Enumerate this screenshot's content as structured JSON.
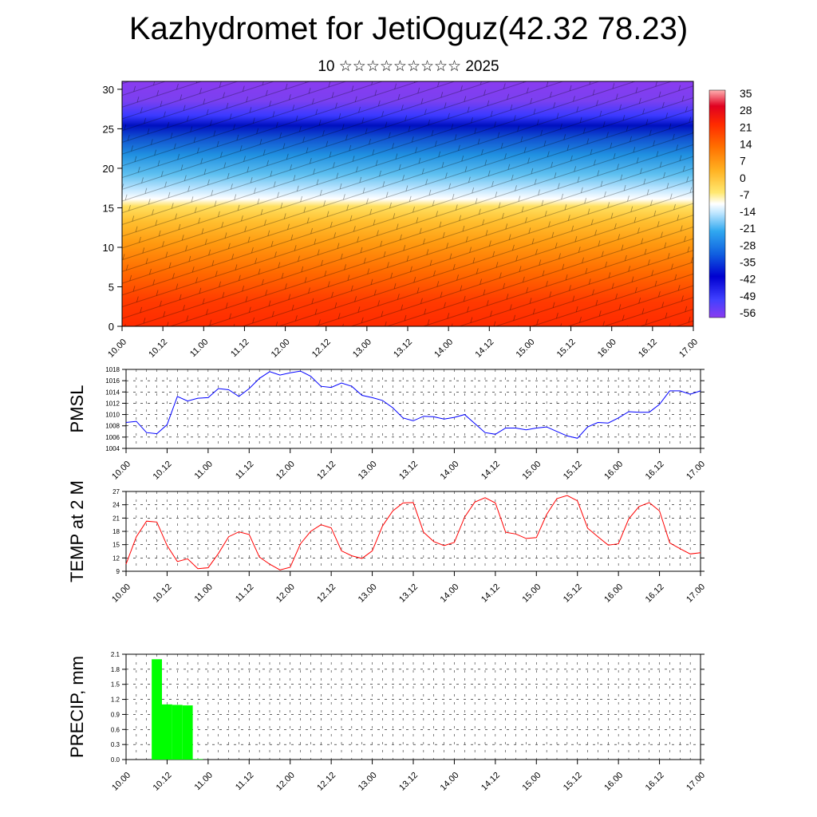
{
  "title": "Kazhydromet for JetiOguz(42.32 78.23)",
  "subtitle": "10 ☆☆☆☆☆☆☆☆☆ 2025",
  "time_ticks": [
    "10.00",
    "10.12",
    "11.00",
    "11.12",
    "12.00",
    "12.12",
    "13.00",
    "13.12",
    "14.00",
    "14.12",
    "15.00",
    "15.12",
    "16.00",
    "16.12",
    "17.00"
  ],
  "chart_data": [
    {
      "type": "heatmap",
      "title": "",
      "ylim": [
        0,
        31
      ],
      "yticks": [
        "0",
        "5",
        "10",
        "15",
        "20",
        "25",
        "30"
      ],
      "colorbar_labels": [
        "35",
        "28",
        "21",
        "14",
        "7",
        "0",
        "-7",
        "-14",
        "-21",
        "-28",
        "-35",
        "-42",
        "-49",
        "-56"
      ],
      "colors": {
        "warm": "#ff2a00",
        "mid": "#ffe060",
        "cold": "#3a3aff",
        "top": "#8a3cf0"
      },
      "approx_profile": [
        {
          "level": 0,
          "value": 28
        },
        {
          "level": 8,
          "value": 18
        },
        {
          "level": 15,
          "value": 5
        },
        {
          "level": 17,
          "value": -14
        },
        {
          "level": 20,
          "value": -30
        },
        {
          "level": 24,
          "value": -50
        },
        {
          "level": 27,
          "value": -58
        }
      ]
    },
    {
      "type": "line",
      "ylabel": "PMSL",
      "ylim": [
        1004,
        1018
      ],
      "yticks": [
        "1004",
        "1006",
        "1008",
        "1010",
        "1012",
        "1014",
        "1016",
        "1018"
      ],
      "color": "#0000ff",
      "x": [
        0,
        3,
        6,
        9,
        12,
        15,
        18,
        21,
        24,
        27,
        30,
        33,
        36,
        39,
        42,
        45,
        48,
        51,
        54,
        57,
        60,
        63,
        66,
        69,
        72,
        75,
        78,
        81,
        84,
        87,
        90,
        93,
        96,
        99,
        102,
        105,
        108,
        111,
        114,
        117,
        120,
        123,
        126,
        129,
        132,
        135,
        138,
        141,
        144,
        147,
        150,
        153,
        156,
        159,
        162,
        165,
        168
      ],
      "values": [
        1008.6,
        1008.8,
        1006.8,
        1006.6,
        1008.2,
        1013.2,
        1012.4,
        1012.9,
        1013.0,
        1014.6,
        1014.4,
        1013.2,
        1014.6,
        1016.4,
        1017.6,
        1017.0,
        1017.4,
        1017.7,
        1016.8,
        1015.0,
        1014.8,
        1015.6,
        1015.0,
        1013.4,
        1013.0,
        1012.5,
        1011.2,
        1009.4,
        1008.9,
        1009.7,
        1009.6,
        1009.2,
        1009.5,
        1010.0,
        1008.4,
        1006.8,
        1006.5,
        1007.6,
        1007.6,
        1007.3,
        1007.6,
        1007.8,
        1007.0,
        1006.2,
        1005.8,
        1007.8,
        1008.6,
        1008.5,
        1009.4,
        1010.5,
        1010.4,
        1010.4,
        1011.8,
        1014.2,
        1014.2,
        1013.6,
        1014.2
      ]
    },
    {
      "type": "line",
      "ylabel": "TEMP at 2 M",
      "ylim": [
        9,
        27
      ],
      "yticks": [
        "9",
        "12",
        "15",
        "18",
        "21",
        "24",
        "27"
      ],
      "color": "#ff0000",
      "x": [
        0,
        3,
        6,
        9,
        12,
        15,
        18,
        21,
        24,
        27,
        30,
        33,
        36,
        39,
        42,
        45,
        48,
        51,
        54,
        57,
        60,
        63,
        66,
        69,
        72,
        75,
        78,
        81,
        84,
        87,
        90,
        93,
        96,
        99,
        102,
        105,
        108,
        111,
        114,
        117,
        120,
        123,
        126,
        129,
        132,
        135,
        138,
        141,
        144,
        147,
        150,
        153,
        156,
        159,
        162,
        165,
        168
      ],
      "values": [
        10.6,
        16.8,
        20.3,
        20.1,
        14.8,
        11.2,
        11.8,
        9.6,
        9.8,
        13.0,
        16.8,
        17.9,
        17.3,
        12.2,
        10.6,
        9.3,
        9.9,
        15.2,
        18.0,
        19.5,
        18.8,
        13.6,
        12.5,
        11.9,
        13.6,
        19.2,
        22.6,
        24.4,
        24.5,
        17.8,
        15.7,
        14.8,
        15.5,
        21.2,
        24.6,
        25.6,
        24.4,
        17.8,
        17.4,
        16.4,
        16.6,
        21.8,
        25.4,
        26.1,
        24.9,
        18.7,
        16.8,
        14.9,
        15.2,
        20.8,
        23.6,
        24.5,
        22.6,
        15.4,
        14.1,
        12.9,
        13.2
      ]
    },
    {
      "type": "bar",
      "ylabel": "PRECIP, mm",
      "ylim": [
        0,
        2.1
      ],
      "yticks": [
        "0.0",
        "0.3",
        "0.6",
        "0.9",
        "1.2",
        "1.5",
        "1.8",
        "2.1"
      ],
      "color": "#00ff00",
      "x": [
        9,
        12,
        15,
        18,
        21
      ],
      "values": [
        2.0,
        1.1,
        1.09,
        1.08,
        0.01
      ]
    }
  ]
}
